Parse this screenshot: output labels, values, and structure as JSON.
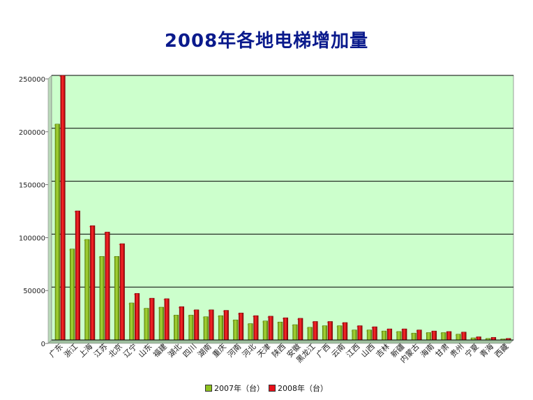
{
  "chart_data": {
    "type": "bar",
    "title": "2008年各地电梯增加量",
    "xlabel": "",
    "ylabel": "",
    "ylim": [
      0,
      250000
    ],
    "yticks": [
      "0",
      "50000",
      "100000",
      "150000",
      "200000",
      "250000"
    ],
    "grid": true,
    "legend_position": "bottom",
    "categories": [
      "广东",
      "浙江",
      "上海",
      "江苏",
      "北京",
      "辽宁",
      "山东",
      "福建",
      "湖北",
      "四川",
      "湖南",
      "重庆",
      "河南",
      "河北",
      "天津",
      "陕西",
      "安徽",
      "黑龙江",
      "广西",
      "云南",
      "江西",
      "山西",
      "吉林",
      "新疆",
      "内蒙古",
      "海南",
      "甘肃",
      "贵州",
      "宁夏",
      "青海",
      "西藏"
    ],
    "series": [
      {
        "name": "2007年（台）",
        "color": "#8fc21f",
        "values": [
          204000,
          86000,
          95000,
          79000,
          79000,
          35000,
          30000,
          31000,
          23500,
          23500,
          22000,
          23000,
          19000,
          15500,
          18000,
          17000,
          14500,
          12000,
          13500,
          13500,
          9500,
          9500,
          8500,
          8000,
          6500,
          7000,
          7000,
          5500,
          2000,
          1500,
          1000
        ]
      },
      {
        "name": "2008年（台）",
        "color": "#e8101a",
        "values": [
          250000,
          122000,
          108000,
          102000,
          91000,
          44000,
          39500,
          39000,
          31500,
          28500,
          28500,
          28000,
          25500,
          23000,
          22500,
          21000,
          20500,
          17500,
          17500,
          16500,
          13500,
          12500,
          10500,
          10500,
          9500,
          8500,
          8000,
          7500,
          3000,
          2500,
          1500
        ]
      }
    ]
  }
}
